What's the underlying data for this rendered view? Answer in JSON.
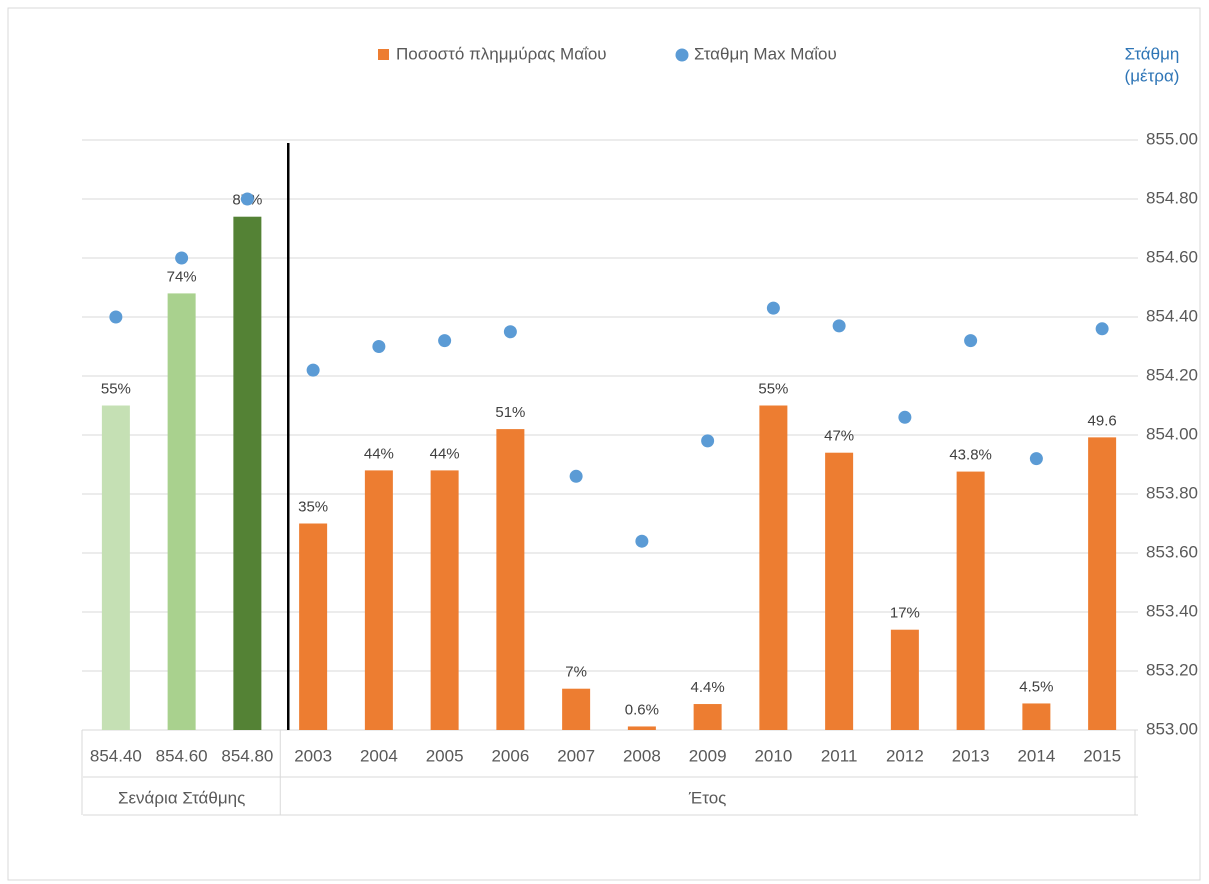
{
  "chart_data": {
    "type": "bar-scatter",
    "groups": [
      {
        "label": "Σενάρια Στάθμης",
        "categories": [
          "854.40",
          "854.60",
          "854.80"
        ]
      },
      {
        "label": "Έτος",
        "categories": [
          "2003",
          "2004",
          "2005",
          "2006",
          "2007",
          "2008",
          "2009",
          "2010",
          "2011",
          "2012",
          "2013",
          "2014",
          "2015"
        ]
      }
    ],
    "series": [
      {
        "name": "Ποσοστό πλημμύρας Μαΐου",
        "type": "bar",
        "color": "#ed7d31",
        "point_colors": [
          "#c5e0b4",
          "#a9d18e",
          "#548235",
          "#ed7d31",
          "#ed7d31",
          "#ed7d31",
          "#ed7d31",
          "#ed7d31",
          "#ed7d31",
          "#ed7d31",
          "#ed7d31",
          "#ed7d31",
          "#ed7d31",
          "#ed7d31",
          "#ed7d31",
          "#ed7d31"
        ],
        "values": [
          55,
          74,
          87,
          35,
          44,
          44,
          51,
          7,
          0.6,
          4.4,
          55,
          47,
          17,
          43.8,
          4.5,
          49.6
        ],
        "value_labels": [
          "55%",
          "74%",
          "87%",
          "35%",
          "44%",
          "44%",
          "51%",
          "7%",
          "0.6%",
          "4.4%",
          "55%",
          "47%",
          "17%",
          "43.8%",
          "4.5%",
          "49.6"
        ]
      },
      {
        "name": "Σταθμη Max Μαΐου",
        "type": "scatter",
        "color": "#5b9bd5",
        "axis": "y2",
        "values": [
          854.4,
          854.6,
          854.8,
          854.22,
          854.3,
          854.32,
          854.35,
          853.86,
          853.64,
          853.98,
          854.43,
          854.37,
          854.06,
          854.32,
          853.92,
          854.36
        ]
      }
    ],
    "ylim": [
      0,
      100
    ],
    "y2lim": [
      853,
      855
    ],
    "y2ticks": [
      {
        "value": 853,
        "label": "853.00"
      },
      {
        "value": 853.2,
        "label": "853.20"
      },
      {
        "value": 853.4,
        "label": "853.40"
      },
      {
        "value": 853.6,
        "label": "853.60"
      },
      {
        "value": 853.8,
        "label": "853.80"
      },
      {
        "value": 854,
        "label": "854.00"
      },
      {
        "value": 854.2,
        "label": "854.20"
      },
      {
        "value": 854.4,
        "label": "854.40"
      },
      {
        "value": 854.6,
        "label": "854.60"
      },
      {
        "value": 854.8,
        "label": "854.80"
      },
      {
        "value": 855,
        "label": "855.00"
      }
    ],
    "y2label": [
      "Στάθμη",
      "(μέτρα)"
    ],
    "grid": true,
    "legend": "top"
  }
}
